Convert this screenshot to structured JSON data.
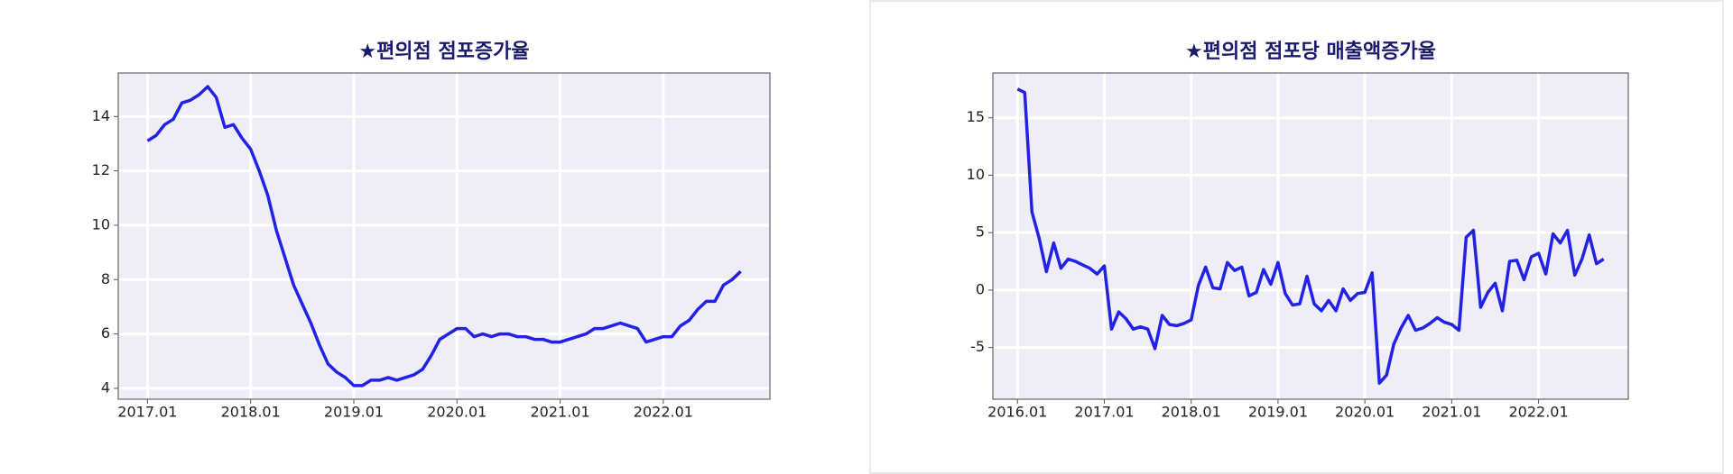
{
  "chart_data": [
    {
      "type": "line",
      "title": "★편의점 점포증가율",
      "x": [
        "2017.01",
        "2017.02",
        "2017.03",
        "2017.04",
        "2017.05",
        "2017.06",
        "2017.07",
        "2017.08",
        "2017.09",
        "2017.10",
        "2017.11",
        "2017.12",
        "2018.01",
        "2018.02",
        "2018.03",
        "2018.04",
        "2018.05",
        "2018.06",
        "2018.07",
        "2018.08",
        "2018.09",
        "2018.10",
        "2018.11",
        "2018.12",
        "2019.01",
        "2019.02",
        "2019.03",
        "2019.04",
        "2019.05",
        "2019.06",
        "2019.07",
        "2019.08",
        "2019.09",
        "2019.10",
        "2019.11",
        "2019.12",
        "2020.01",
        "2020.02",
        "2020.03",
        "2020.04",
        "2020.05",
        "2020.06",
        "2020.07",
        "2020.08",
        "2020.09",
        "2020.10",
        "2020.11",
        "2020.12",
        "2021.01",
        "2021.02",
        "2021.03",
        "2021.04",
        "2021.05",
        "2021.06",
        "2021.07",
        "2021.08",
        "2021.09",
        "2021.10",
        "2021.11",
        "2021.12",
        "2022.01",
        "2022.02",
        "2022.03",
        "2022.04",
        "2022.05",
        "2022.06",
        "2022.07",
        "2022.08",
        "2022.09",
        "2022.10"
      ],
      "series": [
        {
          "color": "#2222e6",
          "values": [
            13.1,
            13.3,
            13.7,
            13.9,
            14.5,
            14.6,
            14.8,
            15.1,
            14.7,
            13.6,
            13.7,
            13.2,
            12.8,
            12.0,
            11.1,
            9.8,
            8.8,
            7.8,
            7.1,
            6.4,
            5.6,
            4.9,
            4.6,
            4.4,
            4.1,
            4.1,
            4.3,
            4.3,
            4.4,
            4.3,
            4.4,
            4.5,
            4.7,
            5.2,
            5.8,
            6.0,
            6.2,
            6.2,
            5.9,
            6.0,
            5.9,
            6.0,
            6.0,
            5.9,
            5.9,
            5.8,
            5.8,
            5.7,
            5.7,
            5.8,
            5.9,
            6.0,
            6.2,
            6.2,
            6.3,
            6.4,
            6.3,
            6.2,
            5.7,
            5.8,
            5.9,
            5.9,
            6.3,
            6.5,
            6.9,
            7.2,
            7.2,
            7.8,
            8.0,
            8.3
          ]
        }
      ],
      "xticks": [
        "2017.01",
        "2018.01",
        "2019.01",
        "2020.01",
        "2021.01",
        "2022.01"
      ],
      "ylim": [
        3.6,
        15.6
      ],
      "yticks": [
        4,
        6,
        8,
        10,
        12,
        14
      ],
      "grid": true
    },
    {
      "type": "line",
      "title": "★편의점 점포당 매출액증가율",
      "x": [
        "2016.01",
        "2016.02",
        "2016.03",
        "2016.04",
        "2016.05",
        "2016.06",
        "2016.07",
        "2016.08",
        "2016.09",
        "2016.10",
        "2016.11",
        "2016.12",
        "2017.01",
        "2017.02",
        "2017.03",
        "2017.04",
        "2017.05",
        "2017.06",
        "2017.07",
        "2017.08",
        "2017.09",
        "2017.10",
        "2017.11",
        "2017.12",
        "2018.01",
        "2018.02",
        "2018.03",
        "2018.04",
        "2018.05",
        "2018.06",
        "2018.07",
        "2018.08",
        "2018.09",
        "2018.10",
        "2018.11",
        "2018.12",
        "2019.01",
        "2019.02",
        "2019.03",
        "2019.04",
        "2019.05",
        "2019.06",
        "2019.07",
        "2019.08",
        "2019.09",
        "2019.10",
        "2019.11",
        "2019.12",
        "2020.01",
        "2020.02",
        "2020.03",
        "2020.04",
        "2020.05",
        "2020.06",
        "2020.07",
        "2020.08",
        "2020.09",
        "2020.10",
        "2020.11",
        "2020.12",
        "2021.01",
        "2021.02",
        "2021.03",
        "2021.04",
        "2021.05",
        "2021.06",
        "2021.07",
        "2021.08",
        "2021.09",
        "2021.10",
        "2021.11",
        "2021.12",
        "2022.01",
        "2022.02",
        "2022.03",
        "2022.04",
        "2022.05",
        "2022.06",
        "2022.07",
        "2022.08",
        "2022.09",
        "2022.10"
      ],
      "series": [
        {
          "color": "#2222e6",
          "values": [
            17.5,
            17.2,
            6.8,
            4.5,
            1.6,
            4.1,
            1.9,
            2.7,
            2.5,
            2.2,
            1.9,
            1.4,
            2.1,
            -3.4,
            -1.9,
            -2.5,
            -3.4,
            -3.2,
            -3.4,
            -5.1,
            -2.2,
            -3.0,
            -3.1,
            -2.9,
            -2.6,
            0.4,
            2.0,
            0.2,
            0.1,
            2.4,
            1.7,
            2.0,
            -0.5,
            -0.2,
            1.8,
            0.5,
            2.4,
            -0.3,
            -1.3,
            -1.2,
            1.2,
            -1.2,
            -1.8,
            -0.9,
            -1.8,
            0.1,
            -0.9,
            -0.3,
            -0.2,
            1.5,
            -8.1,
            -7.4,
            -4.7,
            -3.3,
            -2.2,
            -3.5,
            -3.3,
            -2.9,
            -2.4,
            -2.8,
            -3.0,
            -3.5,
            4.6,
            5.2,
            -1.5,
            -0.2,
            0.6,
            -1.8,
            2.5,
            2.6,
            0.9,
            2.9,
            3.2,
            1.4,
            4.9,
            4.1,
            5.2,
            1.3,
            2.7,
            4.8,
            2.3,
            2.7
          ]
        }
      ],
      "xticks": [
        "2016.01",
        "2017.01",
        "2018.01",
        "2019.01",
        "2020.01",
        "2021.01",
        "2022.01"
      ],
      "ylim": [
        -9.5,
        18.9
      ],
      "yticks": [
        -5,
        0,
        5,
        10,
        15
      ],
      "grid": true
    }
  ]
}
